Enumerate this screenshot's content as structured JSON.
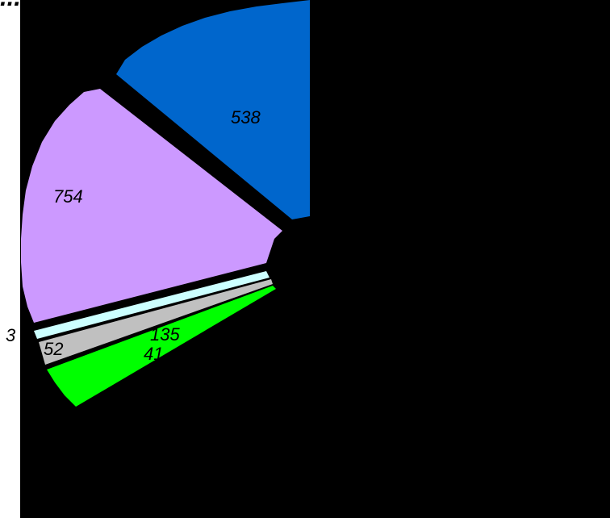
{
  "chart_data": {
    "type": "pie",
    "title": "...",
    "slices": [
      {
        "value": 538,
        "label": "538",
        "color": "#0066cc",
        "exploded": true
      },
      {
        "value": 754,
        "label": "754",
        "color": "#cc99ff",
        "exploded": true
      },
      {
        "value": 3,
        "label": "3",
        "color": "#ccffff",
        "exploded": true
      },
      {
        "value": 52,
        "label": "52",
        "color": "#c0c0c0",
        "exploded": true
      },
      {
        "value": 135,
        "label": "135",
        "color": "#00ff00",
        "exploded": true
      },
      {
        "value": 41,
        "label": "41",
        "color": "#00ff00",
        "exploded": true
      }
    ],
    "background": "#000000"
  }
}
